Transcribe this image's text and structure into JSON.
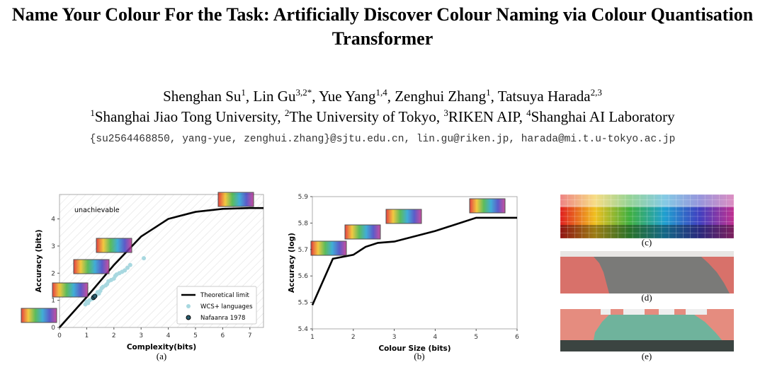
{
  "title": "Name Your Colour For the Task: Artificially Discover Colour Naming via Colour Quantisation Transformer",
  "authors": [
    {
      "name": "Shenghan Su",
      "sup": "1"
    },
    {
      "name": "Lin Gu",
      "sup": "3,2*"
    },
    {
      "name": "Yue Yang",
      "sup": "1,4"
    },
    {
      "name": "Zenghui Zhang",
      "sup": "1"
    },
    {
      "name": "Tatsuya Harada",
      "sup": "2,3"
    }
  ],
  "affiliations": [
    {
      "sup": "1",
      "name": "Shanghai Jiao Tong University"
    },
    {
      "sup": "2",
      "name": "The University of Tokyo"
    },
    {
      "sup": "3",
      "name": "RIKEN AIP"
    },
    {
      "sup": "4",
      "name": "Shanghai AI Laboratory"
    }
  ],
  "emails": "{su2564468850, yang-yue, zenghui.zhang}@sjtu.edu.cn, lin.gu@riken.jp, harada@mi.t.u-tokyo.ac.jp",
  "chart_data": [
    {
      "type": "line",
      "caption": "(a)",
      "xlabel": "Complexity(bits)",
      "ylabel": "Accuracy (bits)",
      "annotation": "unachievable",
      "legend": "lower right",
      "xlim": [
        0,
        7.5
      ],
      "xticks": [
        0,
        1,
        2,
        3,
        4,
        5,
        6,
        7
      ],
      "ylim": [
        0,
        4.9
      ],
      "yticks": [
        0,
        1,
        2,
        3,
        4
      ],
      "series": [
        {
          "name": "Theoretical limit",
          "type": "line",
          "color": "#000000",
          "x": [
            0,
            1,
            2,
            3,
            4,
            5,
            6,
            7,
            7.5
          ],
          "values": [
            0,
            1.12,
            2.3,
            3.35,
            4.0,
            4.26,
            4.37,
            4.4,
            4.4
          ]
        },
        {
          "name": "WCS+ languages",
          "type": "scatter",
          "color": "#a8d8e0",
          "x": [
            0.95,
            1.05,
            1.1,
            1.2,
            1.25,
            1.35,
            1.4,
            1.5,
            1.55,
            1.6,
            1.7,
            1.75,
            1.8,
            1.9,
            2.0,
            2.05,
            2.1,
            2.2,
            2.3,
            2.4,
            2.5,
            2.6,
            1.0,
            1.45,
            3.1
          ],
          "values": [
            0.85,
            0.9,
            1.0,
            1.05,
            1.15,
            1.2,
            1.3,
            1.35,
            1.45,
            1.5,
            1.55,
            1.6,
            1.7,
            1.75,
            1.8,
            1.9,
            1.95,
            2.0,
            2.05,
            2.1,
            2.2,
            2.3,
            0.95,
            1.25,
            2.55
          ]
        },
        {
          "name": "Nafaanra 1978",
          "type": "scatter",
          "color": "#2a5d6e",
          "x": [
            1.25,
            1.3
          ],
          "values": [
            1.1,
            1.15
          ]
        }
      ]
    },
    {
      "type": "line",
      "caption": "(b)",
      "xlabel": "Colour Size (bits)",
      "ylabel": "Accuracy (log)",
      "xlim": [
        1,
        6
      ],
      "xticks": [
        1,
        2,
        3,
        4,
        5,
        6
      ],
      "ylim": [
        5.4,
        5.9
      ],
      "yticks": [
        5.4,
        5.5,
        5.6,
        5.7,
        5.8,
        5.9
      ],
      "series": [
        {
          "type": "line",
          "color": "#000000",
          "x": [
            1,
            1.5,
            2,
            2.3,
            2.6,
            3,
            3.5,
            4,
            5,
            6
          ],
          "values": [
            5.49,
            5.665,
            5.68,
            5.71,
            5.725,
            5.73,
            5.75,
            5.77,
            5.82,
            5.82
          ]
        }
      ]
    }
  ],
  "panels": [
    {
      "caption": "(c)"
    },
    {
      "caption": "(d)"
    },
    {
      "caption": "(e)"
    }
  ]
}
